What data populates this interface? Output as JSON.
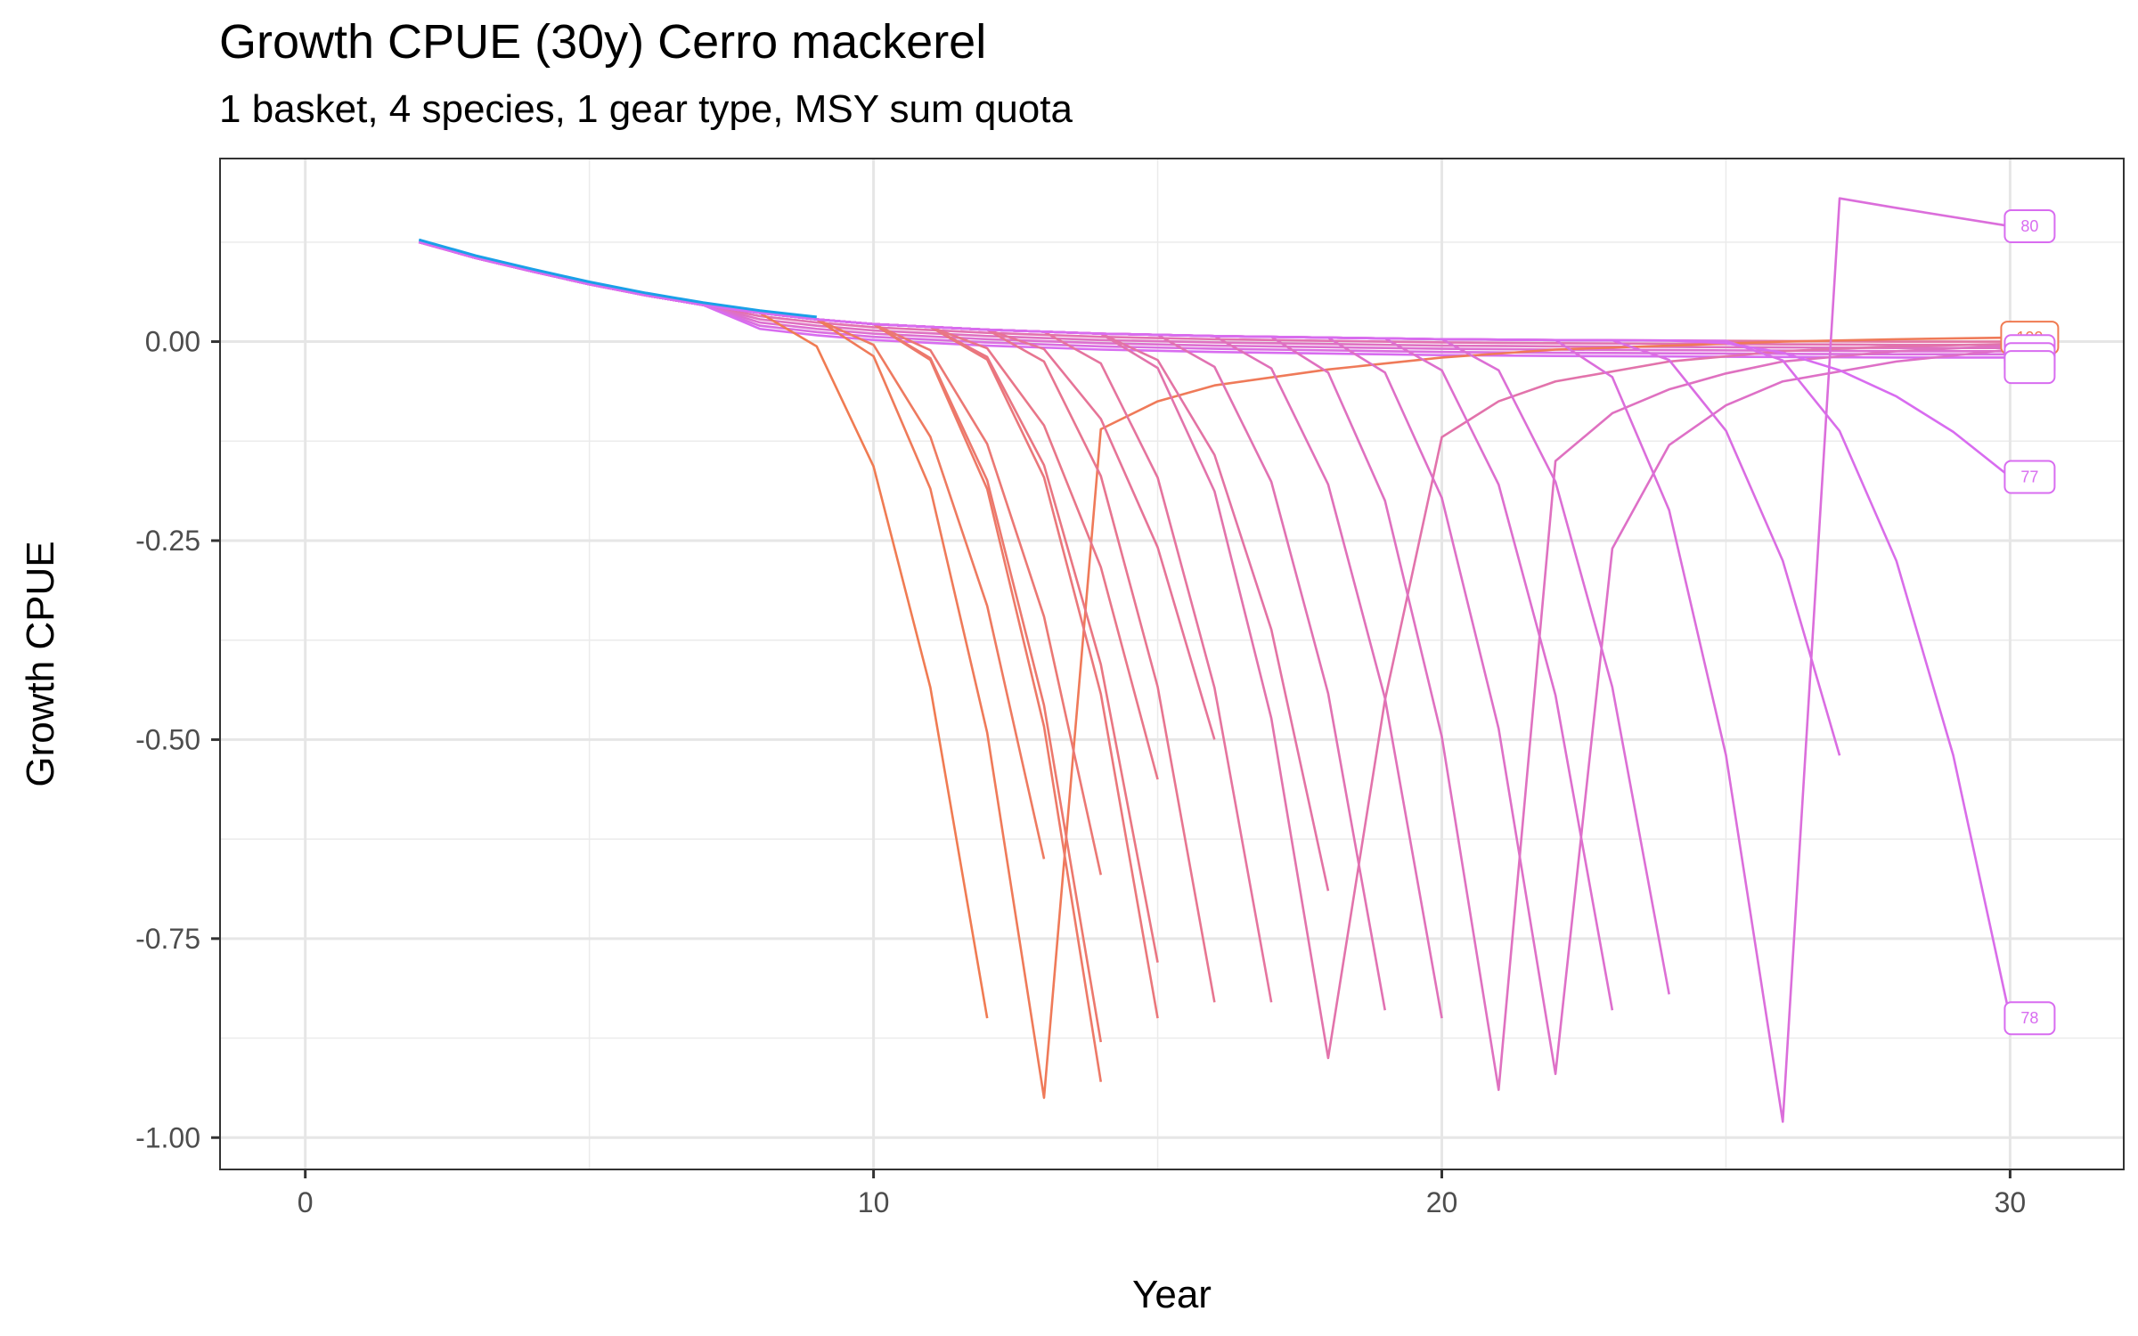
{
  "chart_data": {
    "type": "line",
    "title": "Growth CPUE (30y) Cerro mackerel",
    "subtitle": "1 basket, 4 species, 1 gear type, MSY sum quota",
    "xlabel": "Year",
    "ylabel": "Growth CPUE",
    "xlim": [
      -1.5,
      32
    ],
    "ylim": [
      -1.04,
      0.23
    ],
    "x_ticks": [
      0,
      10,
      20,
      30
    ],
    "x_tick_labels": [
      "0",
      "10",
      "20",
      "30"
    ],
    "y_ticks": [
      0.0,
      -0.25,
      -0.5,
      -0.75,
      -1.0
    ],
    "y_tick_labels": [
      "0.00",
      "-0.25",
      "-0.50",
      "-0.75",
      "-1.00"
    ],
    "grid": true,
    "legend": "none",
    "colors": {
      "start": "#f07b52",
      "end": "#d86cf0",
      "accent": "#1aa0e8"
    },
    "base_curve": {
      "x": [
        2,
        3,
        4,
        5,
        6,
        7,
        8,
        9,
        10,
        12,
        14,
        16,
        18,
        20,
        22,
        25,
        28,
        30
      ],
      "y": [
        0.125,
        0.105,
        0.088,
        0.072,
        0.058,
        0.046,
        0.036,
        0.028,
        0.022,
        0.015,
        0.01,
        0.007,
        0.005,
        0.003,
        0.002,
        0.001,
        0.0,
        0.0
      ]
    },
    "collapse_series": [
      {
        "fork": 8,
        "end": 12,
        "end_y": -0.85,
        "recovery": null
      },
      {
        "fork": 9,
        "end": 13,
        "end_y": -0.95,
        "recovery": {
          "x": [
            14,
            15,
            16,
            18,
            20,
            22,
            24,
            26,
            28,
            30
          ],
          "y": [
            -0.11,
            -0.075,
            -0.055,
            -0.035,
            -0.02,
            -0.01,
            -0.005,
            0.0,
            0.003,
            0.005
          ]
        },
        "label": "100"
      },
      {
        "fork": 9,
        "end": 13,
        "end_y": -0.65,
        "recovery": null
      },
      {
        "fork": 10,
        "end": 14,
        "end_y": -0.93,
        "recovery": null
      },
      {
        "fork": 10,
        "end": 14,
        "end_y": -0.88,
        "recovery": null
      },
      {
        "fork": 10,
        "end": 14,
        "end_y": -0.67,
        "recovery": null
      },
      {
        "fork": 11,
        "end": 15,
        "end_y": -0.85,
        "recovery": null
      },
      {
        "fork": 11,
        "end": 15,
        "end_y": -0.78,
        "recovery": null
      },
      {
        "fork": 11,
        "end": 15,
        "end_y": -0.55,
        "recovery": null
      },
      {
        "fork": 12,
        "end": 16,
        "end_y": -0.83,
        "recovery": null
      },
      {
        "fork": 12,
        "end": 16,
        "end_y": -0.5,
        "recovery": null
      },
      {
        "fork": 13,
        "end": 17,
        "end_y": -0.83,
        "recovery": null
      },
      {
        "fork": 14,
        "end": 18,
        "end_y": -0.69,
        "recovery": null
      },
      {
        "fork": 14,
        "end": 18,
        "end_y": -0.9,
        "recovery": {
          "x": [
            19,
            20,
            21,
            22,
            24,
            26,
            28,
            30
          ],
          "y": [
            -0.45,
            -0.12,
            -0.075,
            -0.05,
            -0.025,
            -0.012,
            -0.006,
            -0.003
          ]
        }
      },
      {
        "fork": 15,
        "end": 19,
        "end_y": -0.84,
        "recovery": null
      },
      {
        "fork": 16,
        "end": 20,
        "end_y": -0.85,
        "recovery": null
      },
      {
        "fork": 17,
        "end": 21,
        "end_y": -0.94,
        "recovery": {
          "x": [
            22,
            23,
            24,
            25,
            26,
            28,
            30
          ],
          "y": [
            -0.15,
            -0.09,
            -0.06,
            -0.04,
            -0.025,
            -0.012,
            -0.005
          ]
        }
      },
      {
        "fork": 18,
        "end": 22,
        "end_y": -0.92,
        "recovery": {
          "x": [
            23,
            24,
            25,
            26,
            28,
            30
          ],
          "y": [
            -0.26,
            -0.13,
            -0.08,
            -0.05,
            -0.025,
            -0.01
          ]
        }
      },
      {
        "fork": 19,
        "end": 23,
        "end_y": -0.84,
        "recovery": null
      },
      {
        "fork": 20,
        "end": 24,
        "end_y": -0.82,
        "recovery": null
      },
      {
        "fork": 22,
        "end": 26,
        "end_y": -0.98,
        "recovery": {
          "x": [
            27,
            28,
            30
          ],
          "y": [
            0.18,
            0.168,
            0.145
          ]
        },
        "label": "80"
      },
      {
        "fork": 23,
        "end": 27,
        "end_y": -0.52,
        "recovery": null
      },
      {
        "fork": 25,
        "end": 30,
        "end_y": -0.85,
        "recovery": null,
        "label": "78"
      },
      {
        "fork": 24,
        "end": 30,
        "end_y": -0.17,
        "recovery": null,
        "label": "77"
      }
    ],
    "end_labels": [
      {
        "text": "80",
        "x": 30,
        "y": 0.145
      },
      {
        "text": "100",
        "x": 30,
        "y": 0.005
      },
      {
        "text": "",
        "x": 30,
        "y": -0.012
      },
      {
        "text": "",
        "x": 30,
        "y": -0.022
      },
      {
        "text": "",
        "x": 30,
        "y": -0.032
      },
      {
        "text": "77",
        "x": 30,
        "y": -0.17
      },
      {
        "text": "78",
        "x": 30,
        "y": -0.85
      }
    ]
  }
}
